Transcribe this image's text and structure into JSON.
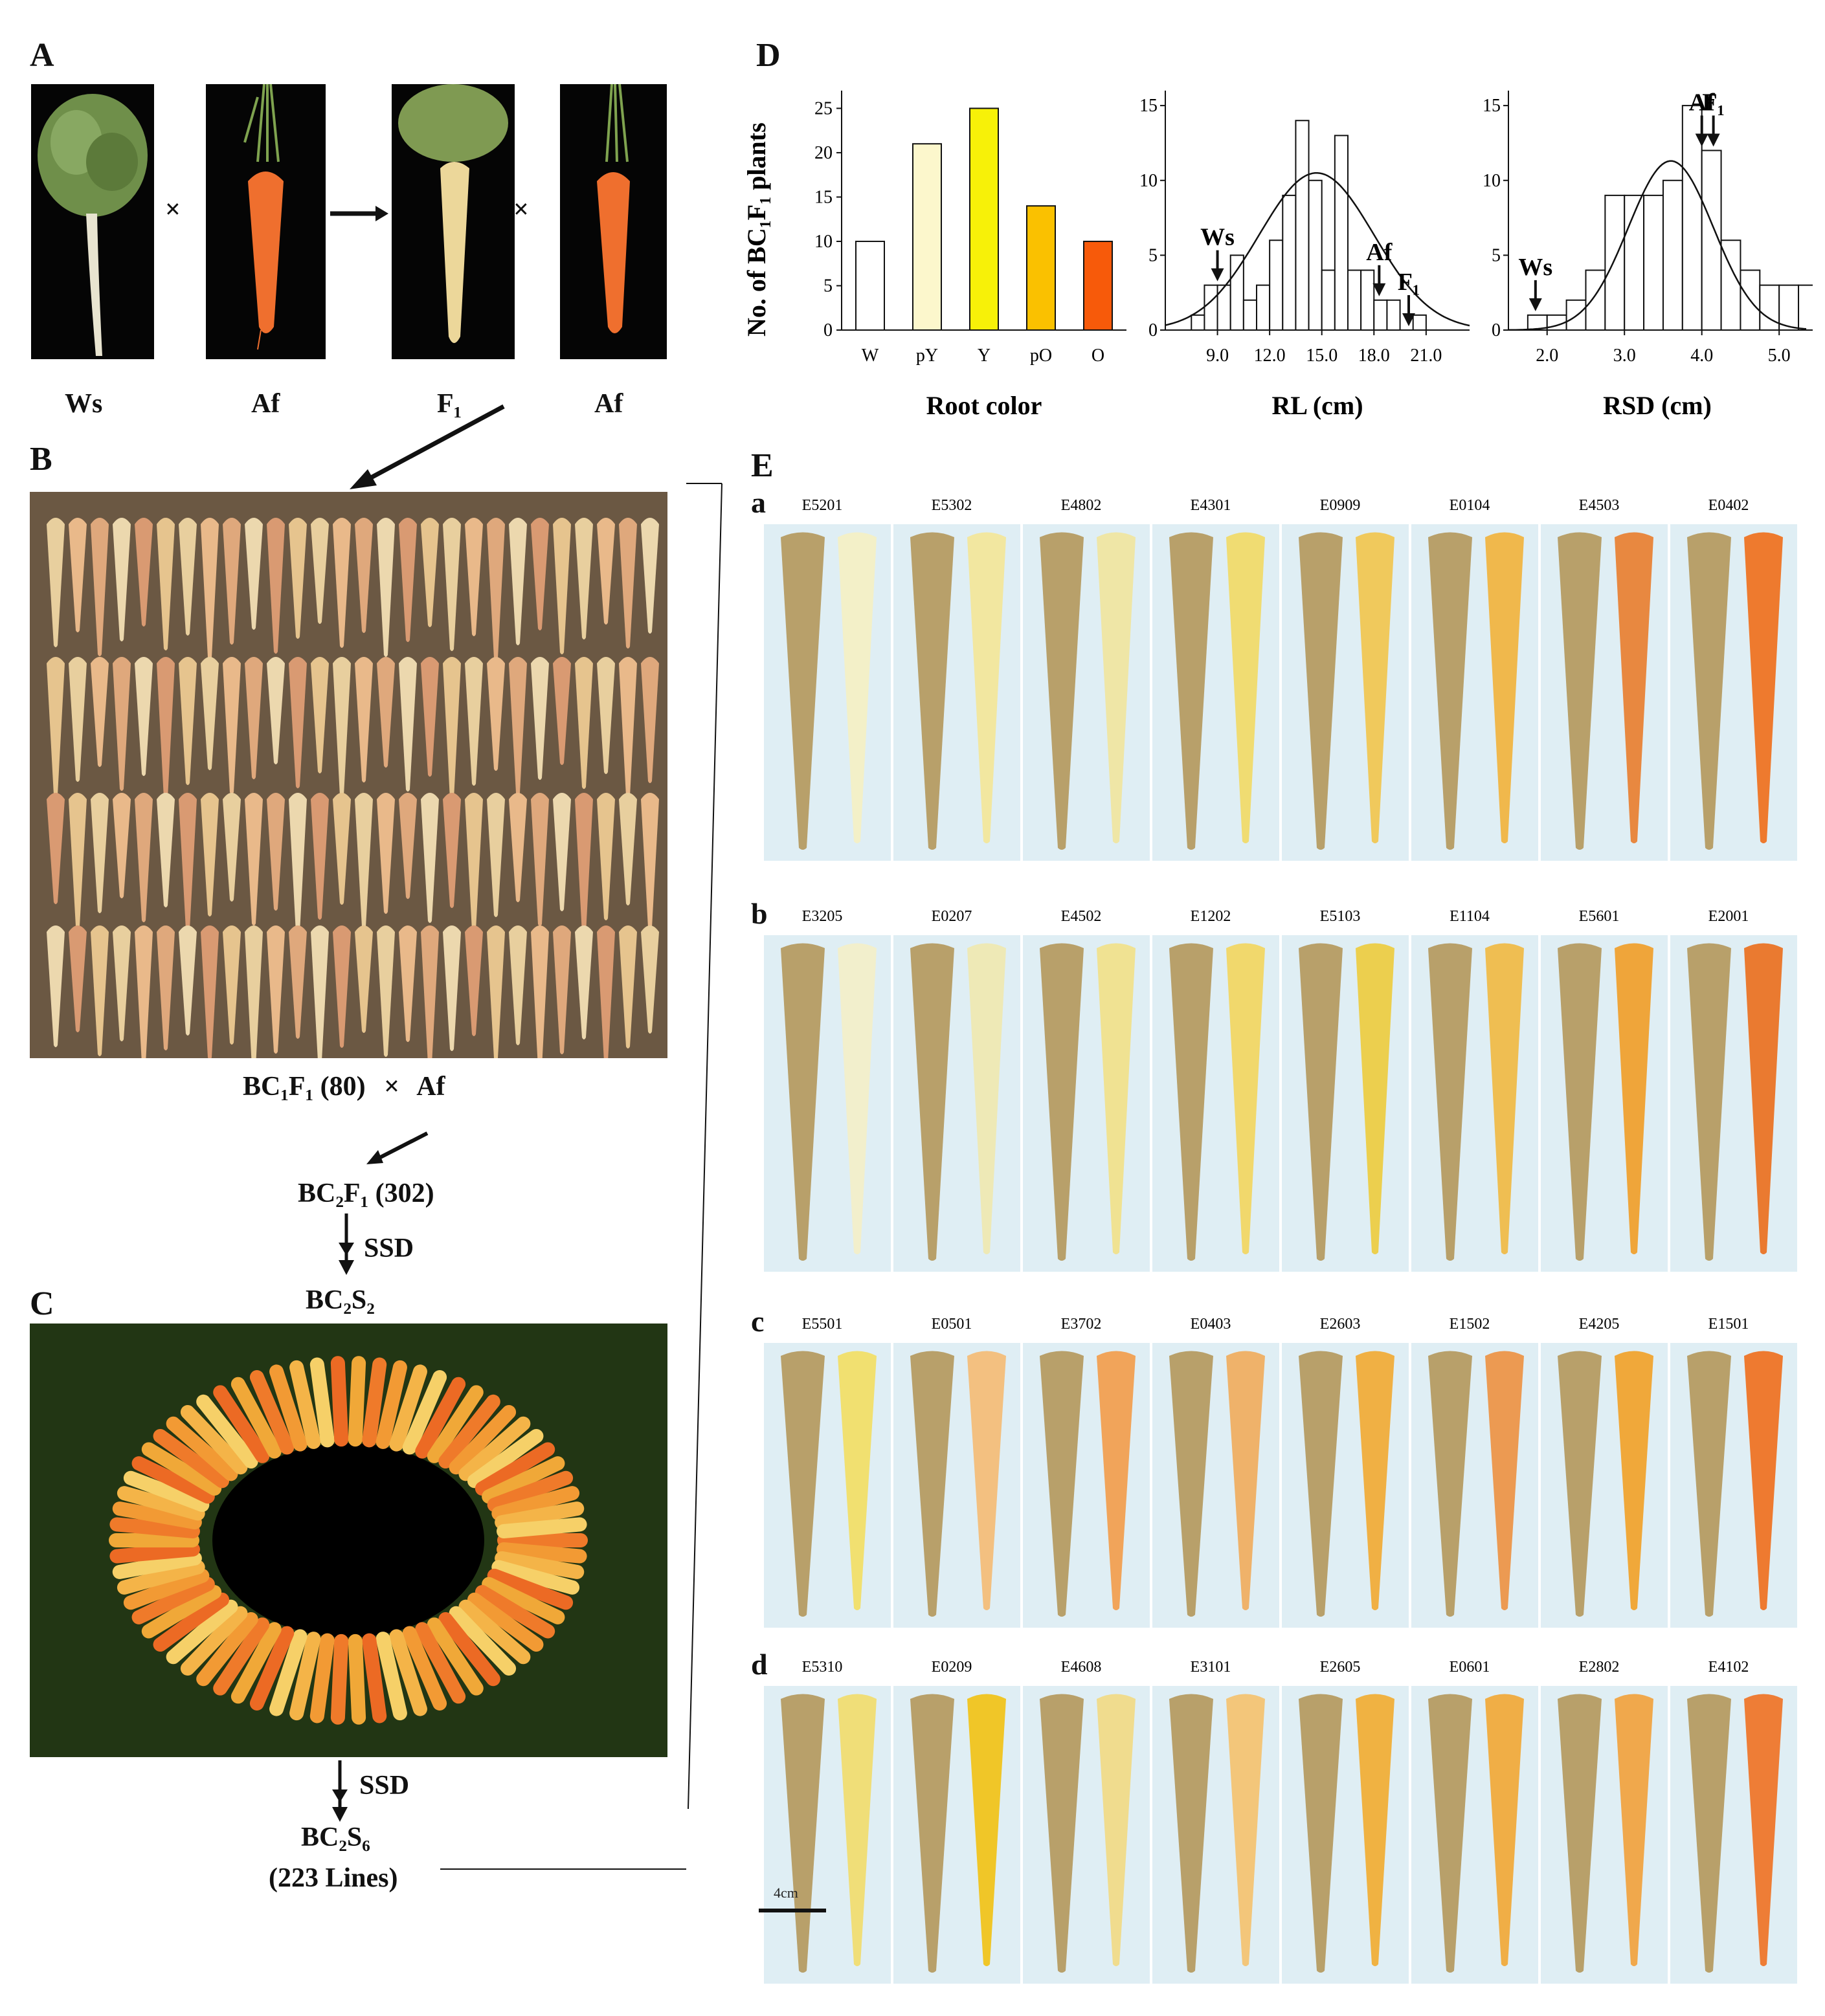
{
  "panels": {
    "A": {
      "letter": "A",
      "labels": [
        "Ws",
        "Af",
        "F₁",
        "Af"
      ],
      "cross_symbol": "×"
    },
    "B": {
      "letter": "B",
      "cross_label": "BC₁F₁ (80)",
      "cross_symbol": "×",
      "parent": "Af"
    },
    "flow": {
      "bc2f1": "BC₂F₁ (302)",
      "ssd1": "SSD",
      "bc2s2": "BC₂S₂",
      "ssd2": "SSD",
      "bc2s6": "BC₂S₆",
      "lines": "(223 Lines)"
    },
    "C": {
      "letter": "C"
    },
    "D": {
      "letter": "D"
    },
    "E": {
      "letter": "E",
      "scale_label": "4cm",
      "rows": [
        {
          "letter": "a",
          "lines": [
            "E5201",
            "E5302",
            "E4802",
            "E4301",
            "E0909",
            "E0104",
            "E4503",
            "E0402"
          ],
          "colors": [
            "#f3f0c8",
            "#f2e7a0",
            "#efe6a6",
            "#f0dc72",
            "#f0c95c",
            "#f0b84c",
            "#e88840",
            "#ee7a2e"
          ]
        },
        {
          "letter": "b",
          "lines": [
            "E3205",
            "E0207",
            "E4502",
            "E1202",
            "E5103",
            "E1104",
            "E5601",
            "E2001"
          ],
          "colors": [
            "#f2efcc",
            "#eee9b6",
            "#f0e292",
            "#f1d86c",
            "#eccf4e",
            "#efbe52",
            "#efa53a",
            "#ea7a30"
          ]
        },
        {
          "letter": "c",
          "lines": [
            "E5501",
            "E0501",
            "E3702",
            "E0403",
            "E2603",
            "E1502",
            "E4205",
            "E1501"
          ],
          "colors": [
            "#f1e070",
            "#f3c080",
            "#f1a45a",
            "#efb26a",
            "#f0b044",
            "#ec9a52",
            "#f0a83a",
            "#ee7a30"
          ]
        },
        {
          "letter": "d",
          "lines": [
            "E5310",
            "E0209",
            "E4608",
            "E3101",
            "E2605",
            "E0601",
            "E2802",
            "E4102"
          ],
          "colors": [
            "#f0de78",
            "#f0c628",
            "#f0dc8e",
            "#f3c67a",
            "#f0b242",
            "#f0ae46",
            "#f0a84c",
            "#ee7d36"
          ]
        }
      ]
    }
  },
  "chart_data": [
    {
      "type": "bar",
      "ylabel": "No. of BC₁F₁ plants",
      "xlabel": "Root color",
      "categories": [
        "W",
        "pY",
        "Y",
        "pO",
        "O"
      ],
      "values": [
        10,
        21,
        25,
        14,
        10
      ],
      "colors": [
        "#ffffff",
        "#fcf7cc",
        "#f7f108",
        "#fac100",
        "#f75a0a"
      ],
      "ylim": [
        0,
        27
      ],
      "yticks": [
        0,
        5,
        10,
        15,
        20,
        25
      ]
    },
    {
      "type": "histogram",
      "xlabel": "RL (cm)",
      "xticks": [
        "9.0",
        "12.0",
        "15.0",
        "18.0",
        "21.0"
      ],
      "yticks": [
        0,
        5,
        10,
        15
      ],
      "ylim": [
        0,
        16
      ],
      "xlim": [
        6.0,
        23.5
      ],
      "bin_start": 6.75,
      "bin_width": 0.75,
      "counts": [
        0,
        1,
        3,
        3,
        5,
        2,
        3,
        6,
        9,
        14,
        10,
        4,
        13,
        4,
        4,
        2,
        2,
        0,
        1
      ],
      "curve": {
        "mean": 14.7,
        "sd": 3.3,
        "peak": 10.5
      },
      "annotations": [
        {
          "text": "Ws",
          "x": 9.0
        },
        {
          "text": "Af",
          "x": 18.3
        },
        {
          "text": "F₁",
          "x": 20.0
        }
      ]
    },
    {
      "type": "histogram",
      "xlabel": "RSD (cm)",
      "xticks": [
        "2.0",
        "3.0",
        "4.0",
        "5.0"
      ],
      "yticks": [
        0,
        5,
        10,
        15
      ],
      "ylim": [
        0,
        16
      ],
      "xlim": [
        1.5,
        5.35
      ],
      "bin_start": 1.75,
      "bin_width": 0.25,
      "counts": [
        1,
        1,
        2,
        4,
        9,
        9,
        9,
        10,
        15,
        12,
        6,
        4,
        3,
        3,
        3
      ],
      "curve": {
        "mean": 3.6,
        "sd": 0.55,
        "peak": 11.3
      },
      "annotations": [
        {
          "text": "Ws",
          "x": 1.85
        },
        {
          "text": "Af",
          "x": 4.0
        },
        {
          "text": "F₁",
          "x": 4.15
        }
      ]
    }
  ]
}
